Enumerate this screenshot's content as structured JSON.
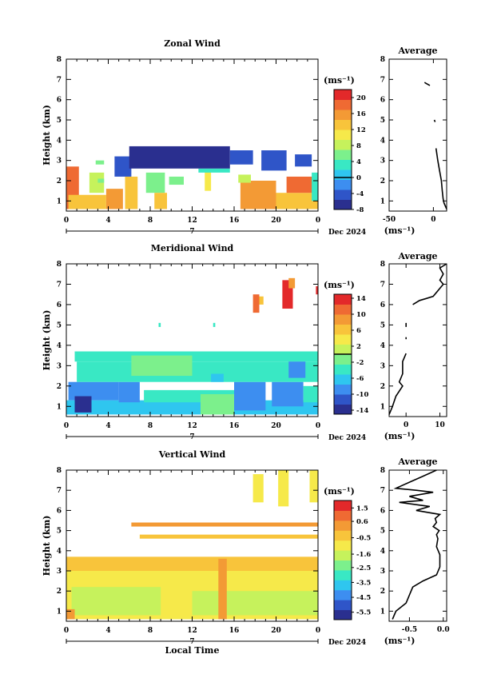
{
  "chart_data": [
    {
      "type": "heatmap",
      "title": "Zonal Wind",
      "ylabel": "Height (km)",
      "unit": "(ms⁻¹)",
      "xlim": [
        0,
        24
      ],
      "ylim": [
        0.5,
        8
      ],
      "x_ticks": [
        "0",
        "4",
        "8",
        "12",
        "16",
        "20",
        "0"
      ],
      "y_ticks": [
        "1",
        "2",
        "3",
        "4",
        "5",
        "6",
        "7",
        "8"
      ],
      "date_tick": "7",
      "date_label": "Dec 2024",
      "colorbar": {
        "min": -8,
        "max": 22,
        "zero": 0,
        "ticks": [
          "20",
          "16",
          "12",
          "8",
          "4",
          "0",
          "-4",
          "-8"
        ]
      },
      "regions": [
        {
          "x0": 0.0,
          "x1": 1.2,
          "y0": 0.6,
          "y1": 2.7,
          "value": 19
        },
        {
          "x0": 0.2,
          "x1": 3.8,
          "y0": 0.6,
          "y1": 1.3,
          "value": 13
        },
        {
          "x0": 2.2,
          "x1": 3.6,
          "y0": 1.4,
          "y1": 2.4,
          "value": 8
        },
        {
          "x0": 3.8,
          "x1": 5.4,
          "y0": 0.6,
          "y1": 1.6,
          "value": 15
        },
        {
          "x0": 5.6,
          "x1": 6.8,
          "y0": 0.6,
          "y1": 2.2,
          "value": 12
        },
        {
          "x0": 7.6,
          "x1": 9.4,
          "y0": 1.4,
          "y1": 2.4,
          "value": 6
        },
        {
          "x0": 8.4,
          "x1": 9.6,
          "y0": 0.6,
          "y1": 1.4,
          "value": 14
        },
        {
          "x0": 9.8,
          "x1": 11.2,
          "y0": 1.8,
          "y1": 2.2,
          "value": 5
        },
        {
          "x0": 13.2,
          "x1": 13.8,
          "y0": 1.5,
          "y1": 2.5,
          "value": 11
        },
        {
          "x0": 12.6,
          "x1": 15.6,
          "y0": 2.4,
          "y1": 2.6,
          "value": 4
        },
        {
          "x0": 16.6,
          "x1": 20.0,
          "y0": 0.6,
          "y1": 2.0,
          "value": 16
        },
        {
          "x0": 16.4,
          "x1": 17.6,
          "y0": 1.9,
          "y1": 2.3,
          "value": 9
        },
        {
          "x0": 20.0,
          "x1": 24.0,
          "y0": 0.6,
          "y1": 1.4,
          "value": 13
        },
        {
          "x0": 21.0,
          "x1": 23.8,
          "y0": 1.4,
          "y1": 2.2,
          "value": 17
        },
        {
          "x0": 23.4,
          "x1": 24.0,
          "y0": 1.0,
          "y1": 2.4,
          "value": 3
        },
        {
          "x0": 3.0,
          "x1": 3.6,
          "y0": 1.9,
          "y1": 2.1,
          "value": 5
        },
        {
          "x0": 4.6,
          "x1": 6.2,
          "y0": 2.2,
          "y1": 3.2,
          "value": -4
        },
        {
          "x0": 6.0,
          "x1": 15.6,
          "y0": 2.6,
          "y1": 3.7,
          "value": -6
        },
        {
          "x0": 15.6,
          "x1": 17.8,
          "y0": 2.8,
          "y1": 3.5,
          "value": -4
        },
        {
          "x0": 18.6,
          "x1": 21.0,
          "y0": 2.5,
          "y1": 3.5,
          "value": -5
        },
        {
          "x0": 21.8,
          "x1": 23.4,
          "y0": 2.7,
          "y1": 3.3,
          "value": -5
        },
        {
          "x0": 2.8,
          "x1": 3.6,
          "y0": 2.8,
          "y1": 3.0,
          "value": 5
        }
      ],
      "profile": {
        "title": "Average",
        "xlim": [
          -50,
          15
        ],
        "x_ticks": [
          "-50",
          "0"
        ],
        "xlabel": "(ms⁻¹)",
        "segments": [
          [
            [
              15,
              0.6
            ],
            [
              12,
              0.9
            ],
            [
              11,
              1.1
            ],
            [
              10,
              1.5
            ],
            [
              9,
              2.0
            ],
            [
              7,
              2.5
            ],
            [
              5,
              3.0
            ],
            [
              3,
              3.6
            ]
          ],
          [
            [
              2,
              4.9
            ],
            [
              1,
              5.0
            ]
          ],
          [
            [
              -4,
              6.7
            ],
            [
              -8,
              6.8
            ],
            [
              -10,
              6.85
            ]
          ]
        ]
      }
    },
    {
      "type": "heatmap",
      "title": "Meridional Wind",
      "ylabel": "Height (km)",
      "unit": "(ms⁻¹)",
      "xlim": [
        0,
        24
      ],
      "ylim": [
        0.5,
        8
      ],
      "x_ticks": [
        "0",
        "4",
        "8",
        "12",
        "16",
        "20",
        "0"
      ],
      "y_ticks": [
        "1",
        "2",
        "3",
        "4",
        "5",
        "6",
        "7",
        "8"
      ],
      "date_tick": "7",
      "date_label": "Dec 2024",
      "colorbar": {
        "min": -15,
        "max": 15,
        "zero": 0,
        "ticks": [
          "14",
          "10",
          "6",
          "2",
          "-2",
          "-6",
          "-10",
          "-14"
        ]
      },
      "regions": [
        {
          "x0": 0.0,
          "x1": 24.0,
          "y0": 0.6,
          "y1": 1.3,
          "value": -6
        },
        {
          "x0": 0.2,
          "x1": 5.0,
          "y0": 1.3,
          "y1": 2.2,
          "value": -10
        },
        {
          "x0": 0.8,
          "x1": 2.4,
          "y0": 0.7,
          "y1": 1.5,
          "value": -13
        },
        {
          "x0": 5.0,
          "x1": 7.0,
          "y0": 1.2,
          "y1": 2.2,
          "value": -8
        },
        {
          "x0": 7.4,
          "x1": 16.0,
          "y0": 1.2,
          "y1": 1.8,
          "value": -4
        },
        {
          "x0": 12.8,
          "x1": 16.0,
          "y0": 0.6,
          "y1": 1.6,
          "value": -1
        },
        {
          "x0": 16.0,
          "x1": 19.0,
          "y0": 0.8,
          "y1": 2.2,
          "value": -8
        },
        {
          "x0": 19.6,
          "x1": 22.6,
          "y0": 1.0,
          "y1": 2.2,
          "value": -9
        },
        {
          "x0": 22.6,
          "x1": 24.0,
          "y0": 1.2,
          "y1": 2.0,
          "value": -4
        },
        {
          "x0": 1.0,
          "x1": 24.0,
          "y0": 2.2,
          "y1": 3.2,
          "value": -4
        },
        {
          "x0": 0.8,
          "x1": 24.0,
          "y0": 3.2,
          "y1": 3.7,
          "value": -3
        },
        {
          "x0": 6.2,
          "x1": 12.0,
          "y0": 2.5,
          "y1": 3.5,
          "value": -2
        },
        {
          "x0": 13.8,
          "x1": 15.0,
          "y0": 2.2,
          "y1": 2.6,
          "value": -6
        },
        {
          "x0": 21.2,
          "x1": 22.8,
          "y0": 2.4,
          "y1": 3.2,
          "value": -8
        },
        {
          "x0": 17.8,
          "x1": 18.4,
          "y0": 5.6,
          "y1": 6.5,
          "value": 12
        },
        {
          "x0": 18.4,
          "x1": 18.8,
          "y0": 6.0,
          "y1": 6.4,
          "value": 6
        },
        {
          "x0": 20.6,
          "x1": 21.6,
          "y0": 5.8,
          "y1": 7.2,
          "value": 13
        },
        {
          "x0": 21.2,
          "x1": 21.8,
          "y0": 6.8,
          "y1": 7.3,
          "value": 9
        },
        {
          "x0": 23.8,
          "x1": 24.0,
          "y0": 6.5,
          "y1": 6.9,
          "value": 13
        },
        {
          "x0": 8.8,
          "x1": 9.0,
          "y0": 4.9,
          "y1": 5.1,
          "value": -3
        },
        {
          "x0": 14.0,
          "x1": 14.2,
          "y0": 4.9,
          "y1": 5.1,
          "value": -3
        }
      ],
      "profile": {
        "title": "Average",
        "xlim": [
          -5,
          12
        ],
        "x_ticks": [
          "0",
          "10"
        ],
        "xlabel": "(ms⁻¹)",
        "segments": [
          [
            [
              -5,
              0.6
            ],
            [
              -4,
              1.0
            ],
            [
              -3,
              1.5
            ],
            [
              -1,
              2.0
            ],
            [
              -2,
              2.2
            ],
            [
              -1,
              2.6
            ],
            [
              -1,
              3.2
            ],
            [
              0,
              3.6
            ]
          ],
          [
            [
              0,
              4.3
            ],
            [
              0,
              4.4
            ]
          ],
          [
            [
              0,
              4.9
            ],
            [
              0,
              5.1
            ]
          ],
          [
            [
              2,
              6.0
            ],
            [
              4,
              6.2
            ],
            [
              6,
              6.3
            ],
            [
              8,
              6.4
            ],
            [
              9,
              6.6
            ],
            [
              10,
              6.8
            ],
            [
              11,
              7.0
            ],
            [
              10,
              7.2
            ],
            [
              11,
              7.5
            ],
            [
              10,
              7.8
            ],
            [
              12,
              8.0
            ]
          ]
        ]
      }
    },
    {
      "type": "heatmap",
      "title": "Vertical Wind",
      "ylabel": "Height (km)",
      "unit": "(ms⁻¹)",
      "xlim": [
        0,
        24
      ],
      "ylim": [
        0.5,
        8
      ],
      "x_ticks": [
        "0",
        "4",
        "8",
        "12",
        "16",
        "20",
        "0"
      ],
      "y_ticks": [
        "1",
        "2",
        "3",
        "4",
        "5",
        "6",
        "7",
        "8"
      ],
      "date_tick": "7",
      "date_label": "Dec 2024",
      "xlabel": "Local Time",
      "colorbar": {
        "min": -6.0,
        "max": 2.0,
        "zero": null,
        "ticks": [
          "1.5",
          "0.6",
          "-0.5",
          "-1.6",
          "-2.5",
          "-3.5",
          "-4.5",
          "-5.5"
        ]
      },
      "regions": [
        {
          "x0": 0.0,
          "x1": 24.0,
          "y0": 0.6,
          "y1": 3.0,
          "value": -0.8
        },
        {
          "x0": 0.0,
          "x1": 24.0,
          "y0": 3.0,
          "y1": 3.7,
          "value": -0.1
        },
        {
          "x0": 0.5,
          "x1": 9.0,
          "y0": 0.8,
          "y1": 2.2,
          "value": -1.4
        },
        {
          "x0": 12.0,
          "x1": 24.0,
          "y0": 0.8,
          "y1": 2.0,
          "value": -1.4
        },
        {
          "x0": 14.5,
          "x1": 15.3,
          "y0": 0.6,
          "y1": 3.6,
          "value": 0.3
        },
        {
          "x0": 6.2,
          "x1": 24.0,
          "y0": 5.2,
          "y1": 5.4,
          "value": 0.2
        },
        {
          "x0": 7.0,
          "x1": 24.0,
          "y0": 4.6,
          "y1": 4.8,
          "value": -0.2
        },
        {
          "x0": 17.8,
          "x1": 18.8,
          "y0": 6.4,
          "y1": 7.8,
          "value": -1.0
        },
        {
          "x0": 20.2,
          "x1": 21.2,
          "y0": 6.2,
          "y1": 8.0,
          "value": -0.8
        },
        {
          "x0": 23.2,
          "x1": 24.0,
          "y0": 6.4,
          "y1": 8.0,
          "value": -1.1
        },
        {
          "x0": 0.0,
          "x1": 0.8,
          "y0": 0.6,
          "y1": 1.1,
          "value": 0.4
        }
      ],
      "profile": {
        "title": "Average",
        "xlim": [
          -0.8,
          0.05
        ],
        "x_ticks": [
          "-0.5",
          "0.0"
        ],
        "xlabel": "(ms⁻¹)",
        "segments": [
          [
            [
              -0.75,
              0.6
            ],
            [
              -0.7,
              1.0
            ],
            [
              -0.55,
              1.4
            ],
            [
              -0.5,
              1.8
            ],
            [
              -0.45,
              2.2
            ],
            [
              -0.3,
              2.5
            ],
            [
              -0.1,
              2.8
            ],
            [
              -0.05,
              3.2
            ],
            [
              -0.05,
              3.8
            ],
            [
              -0.1,
              4.2
            ],
            [
              -0.08,
              4.6
            ],
            [
              -0.1,
              4.8
            ],
            [
              -0.06,
              5.0
            ],
            [
              -0.15,
              5.2
            ],
            [
              -0.1,
              5.4
            ],
            [
              -0.12,
              5.6
            ],
            [
              -0.05,
              5.8
            ],
            [
              -0.4,
              6.0
            ],
            [
              -0.2,
              6.2
            ],
            [
              -0.65,
              6.4
            ],
            [
              -0.3,
              6.5
            ],
            [
              -0.5,
              6.7
            ],
            [
              -0.15,
              6.9
            ],
            [
              -0.4,
              7.0
            ],
            [
              -0.7,
              7.1
            ],
            [
              -0.5,
              7.4
            ],
            [
              -0.3,
              7.7
            ],
            [
              -0.1,
              8.0
            ]
          ]
        ]
      }
    }
  ]
}
